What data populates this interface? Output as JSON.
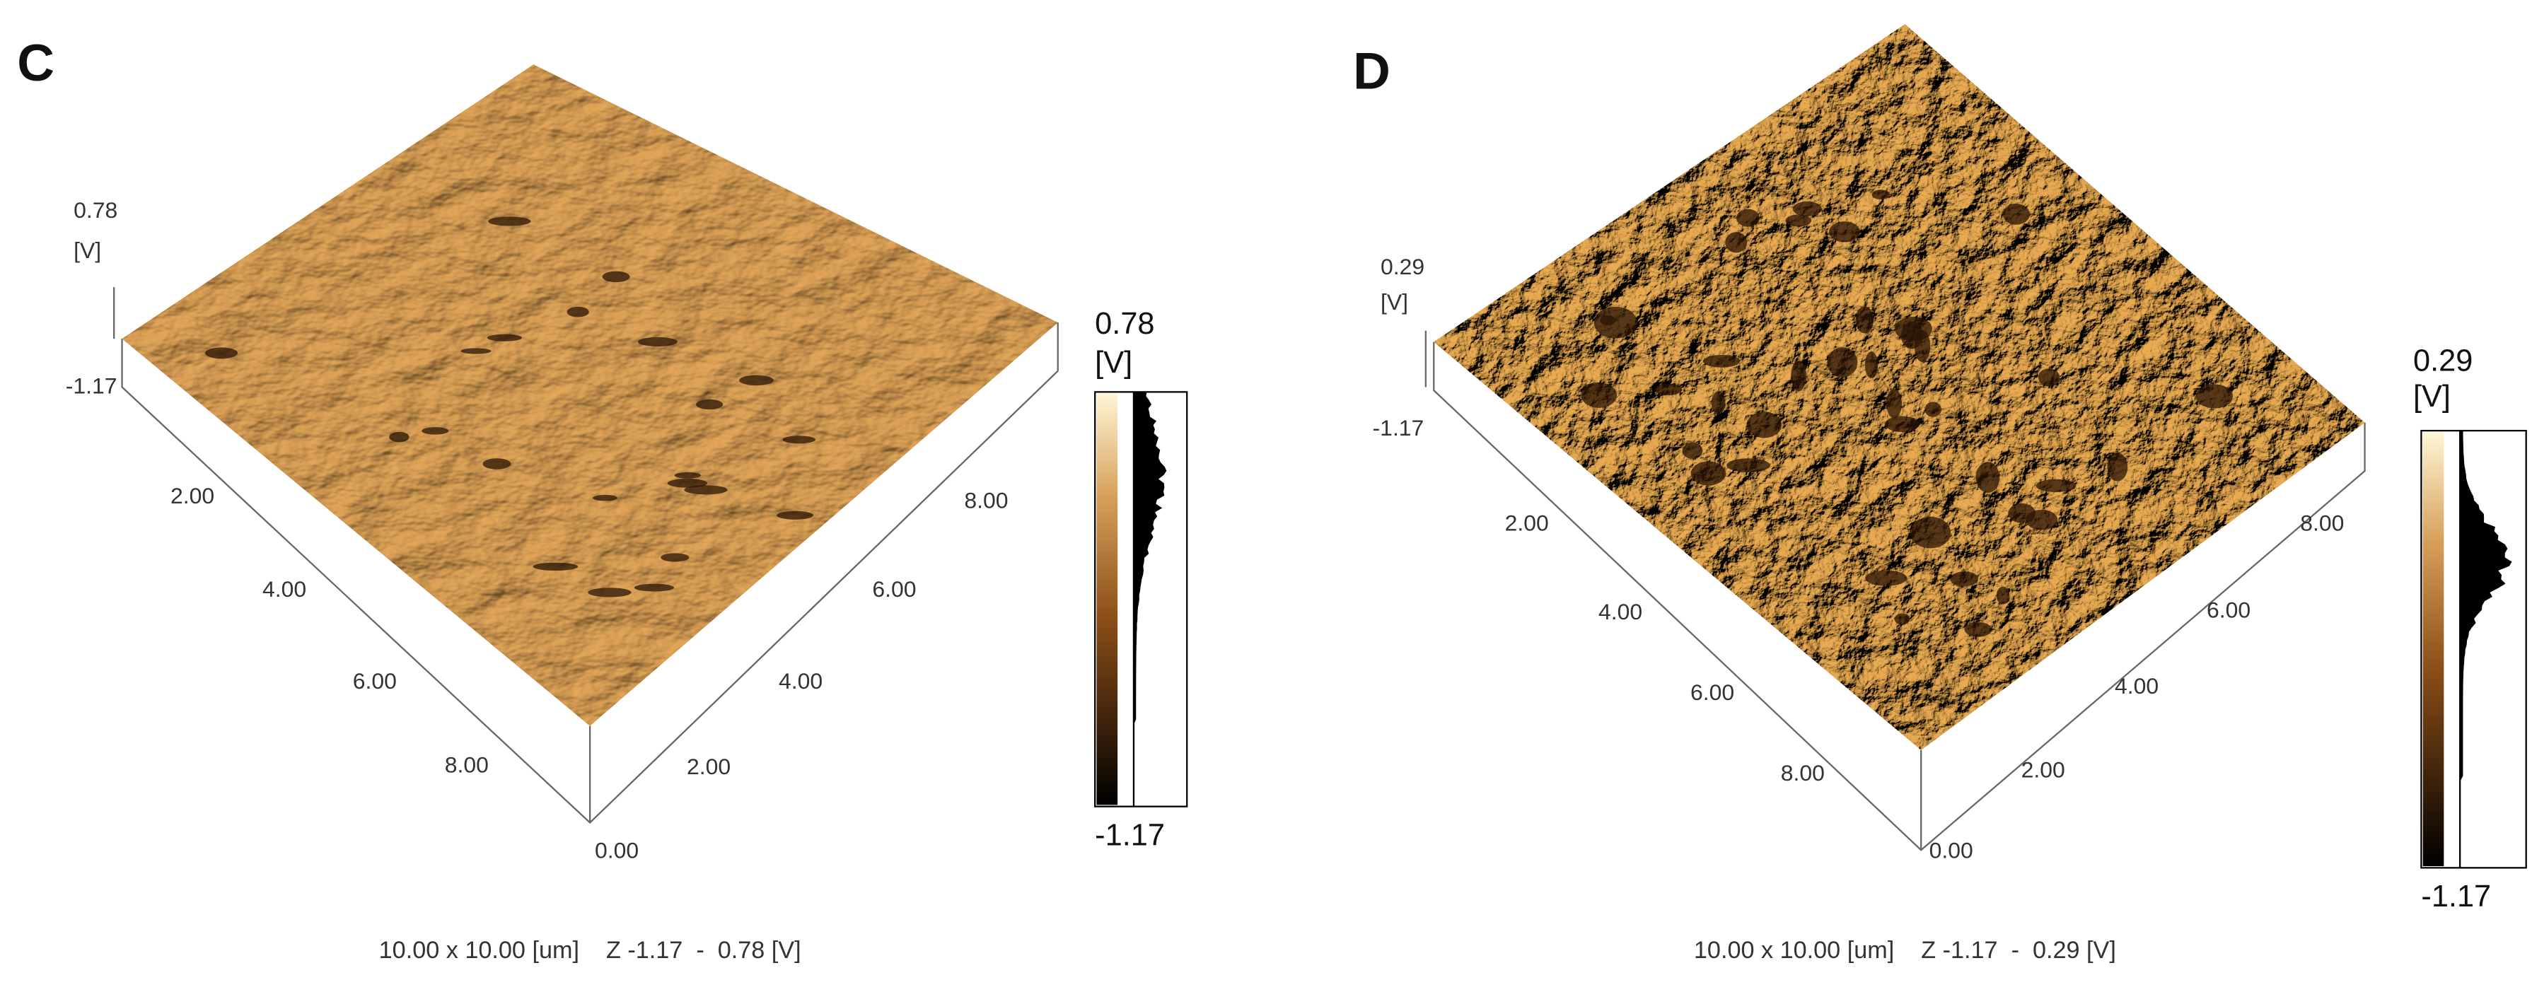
{
  "panels": [
    {
      "label": "C",
      "z_axis": {
        "top": "0.78",
        "unit": "[V]",
        "bottom": "-1.17"
      },
      "left_axis_ticks": [
        "2.00",
        "4.00",
        "6.00",
        "8.00"
      ],
      "right_axis_ticks": [
        "0.00",
        "2.00",
        "4.00",
        "6.00",
        "8.00"
      ],
      "colorbar": {
        "top": "0.78",
        "unit": "[V]",
        "bottom": "-1.17"
      },
      "caption": "10.00 x 10.00 [um]    Z -1.17  -  0.78 [V]"
    },
    {
      "label": "D",
      "z_axis": {
        "top": "0.29",
        "unit": "[V]",
        "bottom": "-1.17"
      },
      "left_axis_ticks": [
        "2.00",
        "4.00",
        "6.00",
        "8.00"
      ],
      "right_axis_ticks": [
        "0.00",
        "2.00",
        "4.00",
        "6.00",
        "8.00"
      ],
      "colorbar": {
        "top": "0.29",
        "unit": "[V]",
        "bottom": "-1.17"
      },
      "caption": "10.00 x 10.00 [um]    Z -1.17  -  0.29 [V]"
    }
  ]
}
